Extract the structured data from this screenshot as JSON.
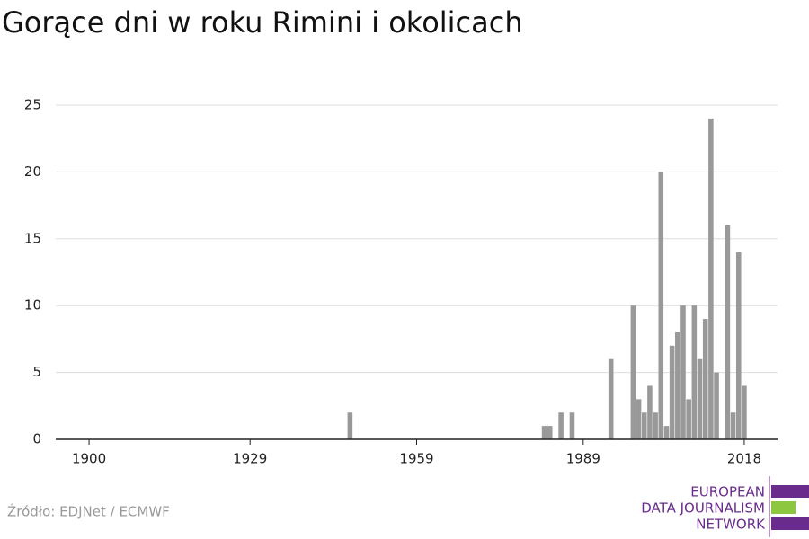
{
  "chart_data": {
    "type": "bar",
    "title": "Gorące dni w roku Rimini i okolicach",
    "x": [
      1947,
      1982,
      1983,
      1985,
      1987,
      1994,
      1998,
      1999,
      2000,
      2001,
      2002,
      2003,
      2004,
      2005,
      2006,
      2007,
      2008,
      2009,
      2010,
      2011,
      2012,
      2013,
      2015,
      2016,
      2017,
      2018
    ],
    "values": [
      2,
      1,
      1,
      2,
      2,
      6,
      10,
      3,
      2,
      4,
      2,
      20,
      1,
      7,
      8,
      10,
      3,
      10,
      6,
      9,
      24,
      5,
      16,
      2,
      14,
      4
    ],
    "color": "#999999",
    "xlim": [
      1894,
      2024
    ],
    "xticks": [
      1900,
      1929,
      1959,
      1989,
      2018
    ],
    "ylim": [
      0,
      25
    ],
    "yticks": [
      0,
      5,
      10,
      15,
      20,
      25
    ],
    "grid": true
  },
  "source": "Źródło: EDJNet / ECMWF",
  "logo": {
    "lines": [
      "EUROPEAN",
      "DATA JOURNALISM",
      "NETWORK"
    ]
  }
}
